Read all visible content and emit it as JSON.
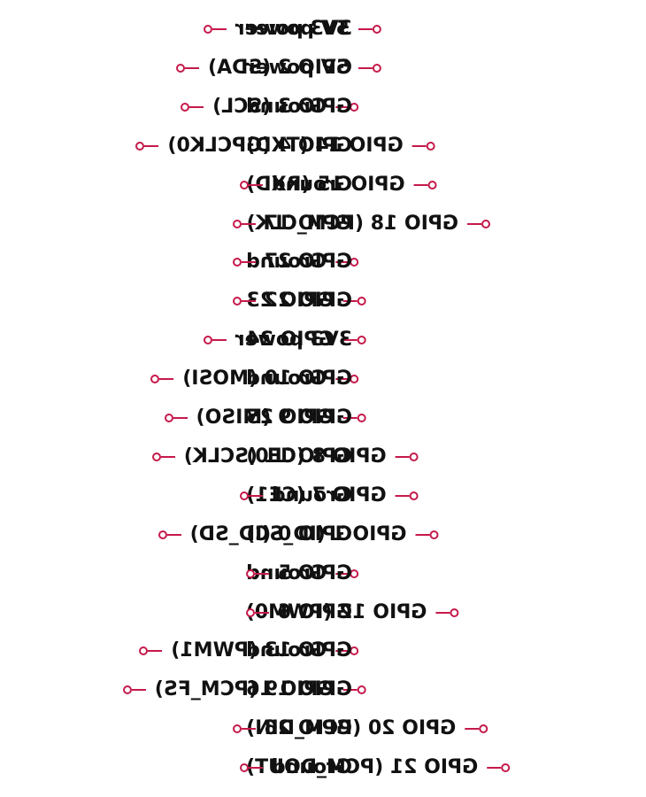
{
  "colors": {
    "accent": "#C51A4A",
    "text": "#111111"
  },
  "icons": {
    "pin_connector": "pin-connector-icon"
  },
  "pins": [
    {
      "left": "5V power",
      "right": "3V3 power"
    },
    {
      "left": "5V power",
      "right": "GPIO 2 (SDA)"
    },
    {
      "left": "Ground",
      "right": "GPIO 3 (SCL)"
    },
    {
      "left": "GPIO 14 (TXD)",
      "right": "GPIO 4 (GPCLK0)"
    },
    {
      "left": "GPIO 15 (RXD)",
      "right": "Ground"
    },
    {
      "left": "GPIO 18 (PCM_CLK)",
      "right": "GPIO 17"
    },
    {
      "left": "Ground",
      "right": "GPIO 27"
    },
    {
      "left": "GPIO 23",
      "right": "GPIO 22"
    },
    {
      "left": "GPIO 24",
      "right": "3V3 power"
    },
    {
      "left": "Ground",
      "right": "GPIO 10 (MOSI)"
    },
    {
      "left": "GPIO 25",
      "right": "GPIO 9 (MISO)"
    },
    {
      "left": "GPIO 8 (CE0)",
      "right": "GPIO 11 (SCLK)"
    },
    {
      "left": "GPIO 7 (CE1)",
      "right": "Ground"
    },
    {
      "left": "GPIO 1 (ID_SC)",
      "right": "GPIO 0 (ID_SD)"
    },
    {
      "left": "Ground",
      "right": "GPIO 5"
    },
    {
      "left": "GPIO 12 (PWM0)",
      "right": "GPIO 6"
    },
    {
      "left": "Ground",
      "right": "GPIO 13 (PWM1)"
    },
    {
      "left": "GPIO 16",
      "right": "GPIO 19 (PCM_FS)"
    },
    {
      "left": "GPIO 20 (PCM_DIN)",
      "right": "GPIO 26"
    },
    {
      "left": "GPIO 21 (PCM_DOUT)",
      "right": "Ground"
    }
  ]
}
